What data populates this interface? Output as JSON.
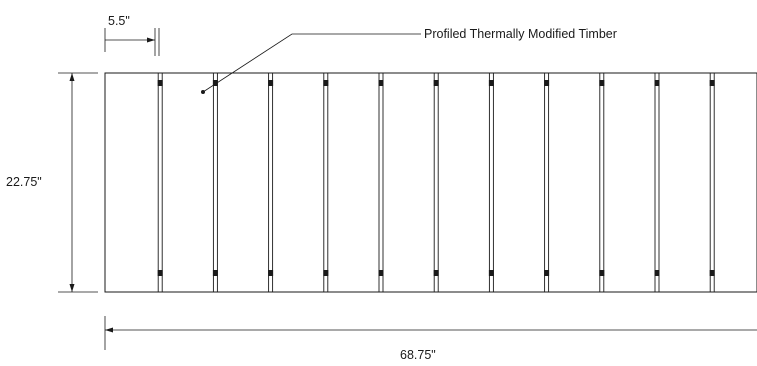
{
  "dimensions": {
    "board_width": "5.5\"",
    "panel_height": "22.75\"",
    "panel_length": "68.75\""
  },
  "callout": {
    "label": "Profiled Thermally Modified Timber"
  },
  "panel": {
    "board_count": 12
  }
}
